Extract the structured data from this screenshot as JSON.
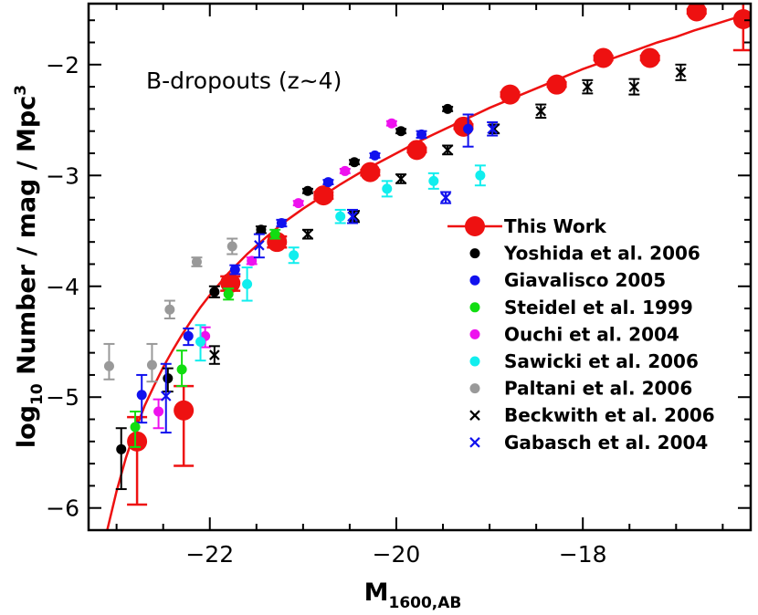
{
  "chart_data": {
    "type": "scatter",
    "title": "",
    "annotation": "B-dropouts (z~4)",
    "xlabel": "M",
    "xlabel_sub": "1600,AB",
    "ylabel_prefix": "log",
    "ylabel_sub": "10",
    "ylabel_main": " Number / mag / Mpc",
    "ylabel_sup": "3",
    "xlim": [
      -23.3,
      -16.2
    ],
    "ylim": [
      -6.2,
      -1.45
    ],
    "xticks": [
      -22,
      -20,
      -18
    ],
    "xtick_labels": [
      "−22",
      "−20",
      "−18"
    ],
    "yticks": [
      -6,
      -5,
      -4,
      -3,
      -2
    ],
    "ytick_labels": [
      "−6",
      "−5",
      "−4",
      "−3",
      "−2"
    ],
    "grid": false,
    "legend_position": "right",
    "fit_curve": {
      "name": "This Work",
      "color": "#ee1111",
      "x": [
        -23.1,
        -23.0,
        -22.9,
        -22.8,
        -22.7,
        -22.6,
        -22.5,
        -22.4,
        -22.3,
        -22.2,
        -22.1,
        -22.0,
        -21.9,
        -21.8,
        -21.6,
        -21.4,
        -21.2,
        -21.0,
        -20.8,
        -20.6,
        -20.4,
        -20.2,
        -20.0,
        -19.8,
        -19.6,
        -19.4,
        -19.2,
        -19.0,
        -18.8,
        -18.6,
        -18.4,
        -18.2,
        -18.0,
        -17.8,
        -17.6,
        -17.4,
        -17.2,
        -17.0,
        -16.8,
        -16.6,
        -16.3
      ],
      "y": [
        -6.2,
        -5.85,
        -5.55,
        -5.3,
        -5.08,
        -4.9,
        -4.73,
        -4.58,
        -4.44,
        -4.31,
        -4.19,
        -4.08,
        -3.98,
        -3.88,
        -3.71,
        -3.56,
        -3.42,
        -3.3,
        -3.19,
        -3.08,
        -2.98,
        -2.89,
        -2.8,
        -2.71,
        -2.63,
        -2.55,
        -2.47,
        -2.39,
        -2.32,
        -2.25,
        -2.18,
        -2.11,
        -2.04,
        -1.98,
        -1.92,
        -1.86,
        -1.8,
        -1.75,
        -1.69,
        -1.64,
        -1.56
      ]
    },
    "series": [
      {
        "name": "This Work",
        "marker": "big-circle",
        "color": "#ee1111",
        "points": [
          {
            "x": -22.78,
            "y": -5.4,
            "lo": -5.97,
            "hi": -5.18
          },
          {
            "x": -22.28,
            "y": -5.12,
            "lo": -5.62,
            "hi": -4.9
          },
          {
            "x": -21.78,
            "y": -3.97,
            "lo": -4.04,
            "hi": -3.91
          },
          {
            "x": -21.28,
            "y": -3.6,
            "lo": -3.65,
            "hi": -3.55
          },
          {
            "x": -20.78,
            "y": -3.18,
            "lo": -3.21,
            "hi": -3.15
          },
          {
            "x": -20.28,
            "y": -2.97,
            "lo": -3.0,
            "hi": -2.95
          },
          {
            "x": -19.78,
            "y": -2.77,
            "lo": -2.79,
            "hi": -2.75
          },
          {
            "x": -19.28,
            "y": -2.56,
            "lo": -2.58,
            "hi": -2.54
          },
          {
            "x": -18.78,
            "y": -2.27,
            "lo": -2.29,
            "hi": -2.25
          },
          {
            "x": -18.28,
            "y": -2.18,
            "lo": -2.2,
            "hi": -2.16
          },
          {
            "x": -17.78,
            "y": -1.94,
            "lo": -1.96,
            "hi": -1.92
          },
          {
            "x": -17.28,
            "y": -1.94,
            "lo": -1.96,
            "hi": -1.92
          },
          {
            "x": -16.78,
            "y": -1.52,
            "lo": -1.54,
            "hi": -1.5
          },
          {
            "x": -16.28,
            "y": -1.59,
            "lo": -1.87,
            "hi": -1.41
          }
        ]
      },
      {
        "name": "Yoshida et al. 2006",
        "marker": "circle",
        "color": "#000000",
        "points": [
          {
            "x": -22.95,
            "y": -5.47,
            "lo": -5.83,
            "hi": -5.28
          },
          {
            "x": -22.45,
            "y": -4.83,
            "lo": -4.95,
            "hi": -4.74
          },
          {
            "x": -21.95,
            "y": -4.05,
            "lo": -4.1,
            "hi": -4.0
          },
          {
            "x": -21.45,
            "y": -3.49,
            "lo": -3.52,
            "hi": -3.46
          },
          {
            "x": -20.95,
            "y": -3.14,
            "lo": -3.16,
            "hi": -3.12
          },
          {
            "x": -20.45,
            "y": -2.88,
            "lo": -2.9,
            "hi": -2.86
          },
          {
            "x": -19.95,
            "y": -2.6,
            "lo": -2.62,
            "hi": -2.58
          },
          {
            "x": -19.45,
            "y": -2.4,
            "lo": -2.42,
            "hi": -2.38
          }
        ]
      },
      {
        "name": "Giavalisco 2005",
        "marker": "circle",
        "color": "#1111ee",
        "points": [
          {
            "x": -22.73,
            "y": -4.98,
            "lo": -5.23,
            "hi": -4.8
          },
          {
            "x": -22.23,
            "y": -4.45,
            "lo": -4.53,
            "hi": -4.38
          },
          {
            "x": -21.73,
            "y": -3.85,
            "lo": -3.89,
            "hi": -3.81
          },
          {
            "x": -21.23,
            "y": -3.43,
            "lo": -3.46,
            "hi": -3.4
          },
          {
            "x": -20.73,
            "y": -3.06,
            "lo": -3.08,
            "hi": -3.04
          },
          {
            "x": -20.23,
            "y": -2.82,
            "lo": -2.84,
            "hi": -2.8
          },
          {
            "x": -19.73,
            "y": -2.63,
            "lo": -2.66,
            "hi": -2.6
          },
          {
            "x": -19.23,
            "y": -2.58,
            "lo": -2.74,
            "hi": -2.45
          }
        ]
      },
      {
        "name": "Steidel et al. 1999",
        "marker": "circle",
        "color": "#11dd11",
        "points": [
          {
            "x": -22.8,
            "y": -5.27,
            "lo": -5.45,
            "hi": -5.13
          },
          {
            "x": -22.3,
            "y": -4.75,
            "lo": -4.9,
            "hi": -4.58
          },
          {
            "x": -21.8,
            "y": -4.07,
            "lo": -4.12,
            "hi": -4.02
          },
          {
            "x": -21.3,
            "y": -3.53,
            "lo": -3.57,
            "hi": -3.49
          }
        ]
      },
      {
        "name": "Ouchi et al. 2004",
        "marker": "circle",
        "color": "#ee11ee",
        "points": [
          {
            "x": -22.55,
            "y": -5.13,
            "lo": -5.28,
            "hi": -5.02
          },
          {
            "x": -22.05,
            "y": -4.45,
            "lo": -4.55,
            "hi": -4.37
          },
          {
            "x": -21.55,
            "y": -3.77,
            "lo": -3.8,
            "hi": -3.74
          },
          {
            "x": -21.05,
            "y": -3.25,
            "lo": -3.27,
            "hi": -3.23
          },
          {
            "x": -20.55,
            "y": -2.96,
            "lo": -2.98,
            "hi": -2.94
          },
          {
            "x": -20.05,
            "y": -2.53,
            "lo": -2.55,
            "hi": -2.51
          }
        ]
      },
      {
        "name": "Sawicki et al. 2006",
        "marker": "circle",
        "color": "#11eeee",
        "points": [
          {
            "x": -22.1,
            "y": -4.5,
            "lo": -4.67,
            "hi": -4.35
          },
          {
            "x": -21.6,
            "y": -3.98,
            "lo": -4.13,
            "hi": -3.83
          },
          {
            "x": -21.1,
            "y": -3.72,
            "lo": -3.79,
            "hi": -3.65
          },
          {
            "x": -20.6,
            "y": -3.37,
            "lo": -3.43,
            "hi": -3.31
          },
          {
            "x": -20.1,
            "y": -3.12,
            "lo": -3.19,
            "hi": -3.05
          },
          {
            "x": -19.6,
            "y": -3.05,
            "lo": -3.12,
            "hi": -2.98
          },
          {
            "x": -19.1,
            "y": -3.0,
            "lo": -3.09,
            "hi": -2.91
          }
        ]
      },
      {
        "name": "Paltani et al. 2006",
        "marker": "circle",
        "color": "#999999",
        "points": [
          {
            "x": -23.08,
            "y": -4.72,
            "lo": -4.84,
            "hi": -4.52
          },
          {
            "x": -22.62,
            "y": -4.71,
            "lo": -4.86,
            "hi": -4.52
          },
          {
            "x": -22.43,
            "y": -4.21,
            "lo": -4.29,
            "hi": -4.13
          },
          {
            "x": -22.14,
            "y": -3.78,
            "lo": -3.82,
            "hi": -3.74
          },
          {
            "x": -21.76,
            "y": -3.64,
            "lo": -3.71,
            "hi": -3.57
          }
        ]
      },
      {
        "name": "Beckwith et al. 2006",
        "marker": "cross",
        "color": "#000000",
        "points": [
          {
            "x": -21.95,
            "y": -4.62,
            "lo": -4.7,
            "hi": -4.54
          },
          {
            "x": -20.95,
            "y": -3.53,
            "lo": -3.57,
            "hi": -3.49
          },
          {
            "x": -20.45,
            "y": -3.37,
            "lo": -3.42,
            "hi": -3.32
          },
          {
            "x": -19.95,
            "y": -3.03,
            "lo": -3.07,
            "hi": -2.99
          },
          {
            "x": -19.45,
            "y": -2.77,
            "lo": -2.81,
            "hi": -2.73
          },
          {
            "x": -18.95,
            "y": -2.58,
            "lo": -2.62,
            "hi": -2.54
          },
          {
            "x": -18.45,
            "y": -2.42,
            "lo": -2.48,
            "hi": -2.36
          },
          {
            "x": -17.95,
            "y": -2.2,
            "lo": -2.26,
            "hi": -2.14
          },
          {
            "x": -17.45,
            "y": -2.2,
            "lo": -2.27,
            "hi": -2.13
          },
          {
            "x": -16.95,
            "y": -2.07,
            "lo": -2.14,
            "hi": -2.0
          }
        ]
      },
      {
        "name": "Gabasch et al. 2004",
        "marker": "cross",
        "color": "#1111ee",
        "points": [
          {
            "x": -22.47,
            "y": -4.99,
            "lo": -5.32,
            "hi": -4.7
          },
          {
            "x": -21.47,
            "y": -3.63,
            "lo": -3.74,
            "hi": -3.53
          },
          {
            "x": -20.47,
            "y": -3.37,
            "lo": -3.43,
            "hi": -3.31
          },
          {
            "x": -19.47,
            "y": -3.2,
            "lo": -3.25,
            "hi": -3.15
          },
          {
            "x": -18.97,
            "y": -2.58,
            "lo": -2.64,
            "hi": -2.52
          }
        ]
      }
    ]
  }
}
